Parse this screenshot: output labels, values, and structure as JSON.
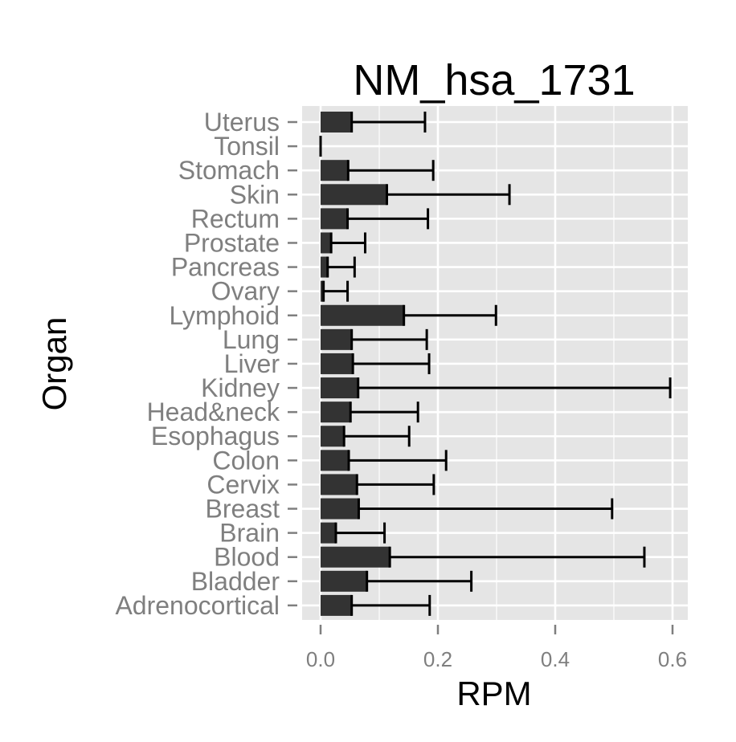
{
  "chart_data": {
    "type": "bar",
    "orientation": "horizontal",
    "title": "NM_hsa_1731",
    "xlabel": "RPM",
    "ylabel": "Organ",
    "xlim": [
      -0.03,
      0.625
    ],
    "x_ticks": [
      "0.0",
      "0.2",
      "0.4",
      "0.6"
    ],
    "x_tick_values": [
      0.0,
      0.2,
      0.4,
      0.6
    ],
    "grid": true,
    "legend": "none",
    "categories": [
      "Uterus",
      "Tonsil",
      "Stomach",
      "Skin",
      "Rectum",
      "Prostate",
      "Pancreas",
      "Ovary",
      "Lymphoid",
      "Lung",
      "Liver",
      "Kidney",
      "Head&neck",
      "Esophagus",
      "Colon",
      "Cervix",
      "Breast",
      "Brain",
      "Blood",
      "Bladder",
      "Adrenocortical"
    ],
    "values": [
      0.053,
      0.0,
      0.047,
      0.113,
      0.046,
      0.018,
      0.012,
      0.005,
      0.142,
      0.053,
      0.055,
      0.064,
      0.051,
      0.04,
      0.048,
      0.062,
      0.065,
      0.026,
      0.118,
      0.079,
      0.053
    ],
    "error_upper": [
      0.178,
      0.0,
      0.192,
      0.322,
      0.183,
      0.076,
      0.058,
      0.046,
      0.299,
      0.181,
      0.185,
      0.596,
      0.166,
      0.151,
      0.214,
      0.193,
      0.497,
      0.109,
      0.552,
      0.257,
      0.186
    ],
    "colors": {
      "bar": "#333333",
      "panel": "#e5e5e5",
      "grid": "#ffffff",
      "text_muted": "#7f7f7f",
      "errorbar": "#000000"
    }
  }
}
